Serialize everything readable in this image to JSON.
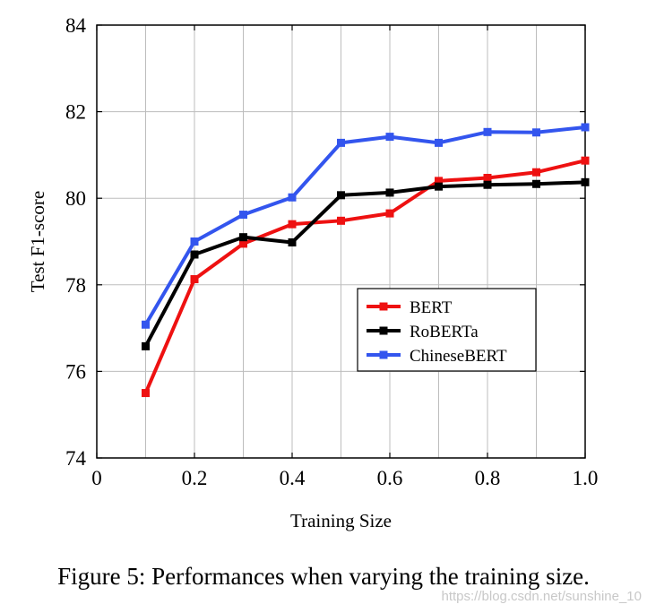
{
  "chart_data": {
    "type": "line",
    "title": "",
    "xlabel": "Training Size",
    "ylabel": "Test F1-score",
    "xlim": [
      0,
      1.0
    ],
    "ylim": [
      74,
      84
    ],
    "x_ticks": [
      0,
      0.2,
      0.4,
      0.6,
      0.8,
      1.0
    ],
    "x_tick_labels": [
      "0",
      "0.2",
      "0.4",
      "0.6",
      "0.8",
      "1.0"
    ],
    "y_ticks": [
      74,
      76,
      78,
      80,
      82,
      84
    ],
    "y_tick_labels": [
      "74",
      "76",
      "78",
      "80",
      "82",
      "84"
    ],
    "grid": true,
    "legend_position": "center-right",
    "x": [
      0.1,
      0.2,
      0.3,
      0.4,
      0.5,
      0.6,
      0.7,
      0.8,
      0.9,
      1.0
    ],
    "series": [
      {
        "name": "BERT",
        "color": "#ee1111",
        "values": [
          75.5,
          78.13,
          78.95,
          79.4,
          79.48,
          79.65,
          80.4,
          80.47,
          80.6,
          80.87
        ]
      },
      {
        "name": "RoBERTa",
        "color": "#000000",
        "values": [
          76.58,
          78.7,
          79.1,
          78.98,
          80.07,
          80.13,
          80.27,
          80.31,
          80.33,
          80.37
        ]
      },
      {
        "name": "ChineseBERT",
        "color": "#3355ee",
        "values": [
          77.08,
          79.0,
          79.62,
          80.02,
          81.28,
          81.42,
          81.28,
          81.53,
          81.52,
          81.64
        ]
      }
    ]
  },
  "caption": "Figure 5: Performances when varying the training size.",
  "watermark": "https://blog.csdn.net/sunshine_10"
}
